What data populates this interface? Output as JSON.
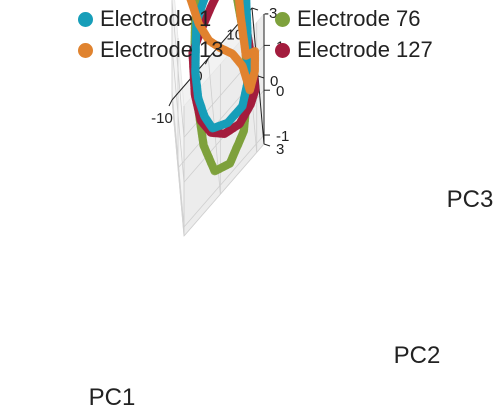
{
  "chart_data": {
    "type": "scatter",
    "projection": "3d",
    "xlabel": "PC1",
    "ylabel": "PC2",
    "zlabel": "PC3",
    "xlim": [
      -10,
      12
    ],
    "ylim": [
      -3,
      3
    ],
    "zlim": [
      -1.2,
      1.7
    ],
    "xticks": [
      "-10",
      "0",
      "10"
    ],
    "yticks": [
      "-3",
      "0",
      "3"
    ],
    "zticks": [
      "-1",
      "0",
      "1"
    ],
    "grid": true,
    "legend": "top-center, 2 columns",
    "series": [
      {
        "name": "Electrode 1",
        "color": "#179eb9",
        "points": [
          [
            -4,
            -1.6,
            0.7
          ],
          [
            -2,
            -1.9,
            0.8
          ],
          [
            1,
            -2.2,
            0.95
          ],
          [
            4,
            -2.4,
            1.05
          ],
          [
            6.5,
            -2.3,
            1.1
          ],
          [
            8,
            -1.5,
            0.95
          ],
          [
            9,
            -0.5,
            0.55
          ],
          [
            9,
            0.2,
            0.1
          ],
          [
            8.5,
            1.0,
            -0.55
          ],
          [
            7,
            1.3,
            -0.75
          ],
          [
            3,
            1.2,
            -0.8
          ],
          [
            -1,
            0.9,
            -0.7
          ],
          [
            -3,
            0.5,
            -0.45
          ],
          [
            -4.5,
            0.1,
            -0.1
          ],
          [
            -5,
            -0.4,
            0.25
          ],
          [
            -4.5,
            -1.1,
            0.55
          ],
          [
            -4,
            -1.6,
            0.7
          ]
        ]
      },
      {
        "name": "Electrode 13",
        "color": "#e0832f",
        "points": [
          [
            -5.5,
            -2.0,
            1.15
          ],
          [
            -3,
            -2.3,
            1.3
          ],
          [
            0,
            -2.6,
            1.45
          ],
          [
            3,
            -2.7,
            1.6
          ],
          [
            5.5,
            -2.6,
            1.65
          ],
          [
            6.3,
            -2.0,
            1.45
          ],
          [
            6.8,
            -1.3,
            1.0
          ],
          [
            7.3,
            -0.2,
            0.5
          ],
          [
            8.3,
            0.7,
            -0.05
          ],
          [
            10.5,
            1.2,
            0.1
          ],
          [
            10.5,
            1.1,
            -0.4
          ],
          [
            9.2,
            1.0,
            -0.75
          ],
          [
            7.5,
            0.4,
            -0.35
          ],
          [
            5,
            -0.1,
            -0.1
          ],
          [
            2,
            -0.5,
            0.1
          ],
          [
            -1,
            -0.9,
            0.35
          ],
          [
            -3.5,
            -1.4,
            0.7
          ],
          [
            -5.5,
            -2.0,
            1.15
          ]
        ]
      },
      {
        "name": "Electrode 76",
        "color": "#7ea13c",
        "points": [
          [
            -3,
            -2.1,
            0.95
          ],
          [
            0,
            -2.3,
            0.8
          ],
          [
            4,
            -2.1,
            0.6
          ],
          [
            7,
            -1.4,
            0.3
          ],
          [
            8.5,
            0.0,
            -0.15
          ],
          [
            8.5,
            1.2,
            -0.55
          ],
          [
            7,
            2.0,
            -0.95
          ],
          [
            3,
            2.3,
            -1.15
          ],
          [
            -1,
            2.0,
            -1.1
          ],
          [
            -3.5,
            1.0,
            -0.8
          ],
          [
            -4.8,
            0.0,
            -0.15
          ],
          [
            -5,
            -0.9,
            0.35
          ],
          [
            -4.4,
            -1.6,
            0.75
          ],
          [
            -3,
            -2.1,
            0.95
          ]
        ]
      },
      {
        "name": "Electrode 127",
        "color": "#a31c3d",
        "points": [
          [
            -5.5,
            -0.9,
            0.5
          ],
          [
            -3,
            -1.3,
            0.55
          ],
          [
            0,
            -1.7,
            0.6
          ],
          [
            4,
            -2.1,
            0.65
          ],
          [
            7,
            -1.7,
            0.5
          ],
          [
            8.5,
            -0.6,
            0.2
          ],
          [
            9.7,
            0.6,
            -0.2
          ],
          [
            10.2,
            1.3,
            -0.4
          ],
          [
            10.4,
            1.6,
            -0.55
          ],
          [
            9,
            1.7,
            -0.7
          ],
          [
            6,
            1.7,
            -0.85
          ],
          [
            2,
            1.4,
            -0.85
          ],
          [
            -1.5,
            1.0,
            -0.7
          ],
          [
            -4,
            0.5,
            -0.45
          ],
          [
            -5.3,
            -0.1,
            -0.05
          ],
          [
            -5.5,
            -0.9,
            0.5
          ]
        ]
      }
    ]
  }
}
